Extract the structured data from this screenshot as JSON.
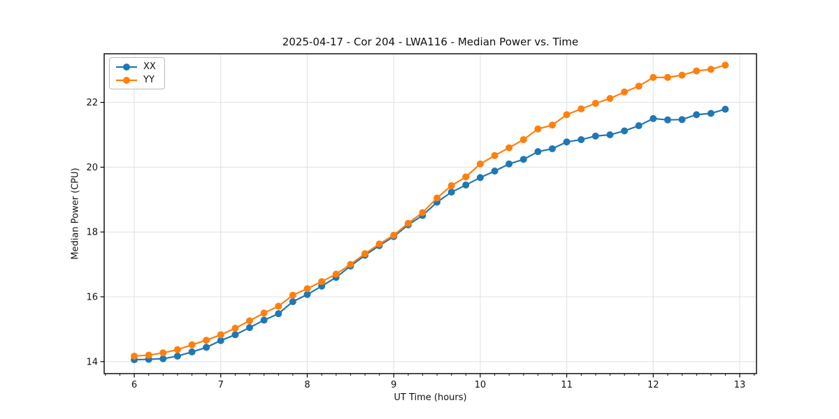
{
  "title": "2025-04-17 - Cor 204 - LWA116 - Median Power vs. Time",
  "legend": {
    "items": [
      {
        "label": "XX"
      },
      {
        "label": "YY"
      }
    ]
  },
  "chart_data": {
    "type": "line",
    "title": "2025-04-17 - Cor 204 - LWA116 - Median Power vs. Time",
    "xlabel": "UT Time (hours)",
    "ylabel": "Median Power (CPU)",
    "xlim": [
      5.652,
      13.194
    ],
    "ylim": [
      13.63,
      23.5
    ],
    "x_ticks": [
      6,
      7,
      8,
      9,
      10,
      11,
      12,
      13
    ],
    "y_ticks": [
      14,
      16,
      18,
      20,
      22
    ],
    "x_minor_tick_step": 0.1667,
    "grid": true,
    "legend_position": "upper left",
    "x": [
      6,
      6.167,
      6.333,
      6.5,
      6.667,
      6.833,
      7,
      7.167,
      7.333,
      7.5,
      7.667,
      7.833,
      8,
      8.167,
      8.333,
      8.5,
      8.667,
      8.833,
      9,
      9.167,
      9.333,
      9.5,
      9.667,
      9.833,
      10,
      10.167,
      10.333,
      10.5,
      10.667,
      10.833,
      11,
      11.167,
      11.333,
      11.5,
      11.667,
      11.833,
      12,
      12.167,
      12.333,
      12.5,
      12.667,
      12.833
    ],
    "series": [
      {
        "name": "XX",
        "color": "#1f77b4",
        "values": [
          14.06,
          14.07,
          14.09,
          14.17,
          14.3,
          14.44,
          14.65,
          14.83,
          15.05,
          15.28,
          15.48,
          15.85,
          16.07,
          16.33,
          16.6,
          16.95,
          17.28,
          17.58,
          17.86,
          18.22,
          18.51,
          18.92,
          19.23,
          19.45,
          19.68,
          19.88,
          20.1,
          20.24,
          20.48,
          20.57,
          20.78,
          20.85,
          20.96,
          21.0,
          21.12,
          21.28,
          21.5,
          21.46,
          21.47,
          21.62,
          21.66,
          21.79
        ]
      },
      {
        "name": "YY",
        "color": "#ff7f0e",
        "values": [
          14.17,
          14.2,
          14.27,
          14.37,
          14.52,
          14.66,
          14.83,
          15.03,
          15.26,
          15.5,
          15.71,
          16.05,
          16.25,
          16.47,
          16.7,
          17.0,
          17.33,
          17.63,
          17.9,
          18.27,
          18.6,
          19.05,
          19.43,
          19.7,
          20.1,
          20.36,
          20.6,
          20.85,
          21.18,
          21.3,
          21.62,
          21.8,
          21.97,
          22.12,
          22.32,
          22.5,
          22.77,
          22.77,
          22.84,
          22.97,
          23.02,
          23.15
        ]
      }
    ]
  }
}
